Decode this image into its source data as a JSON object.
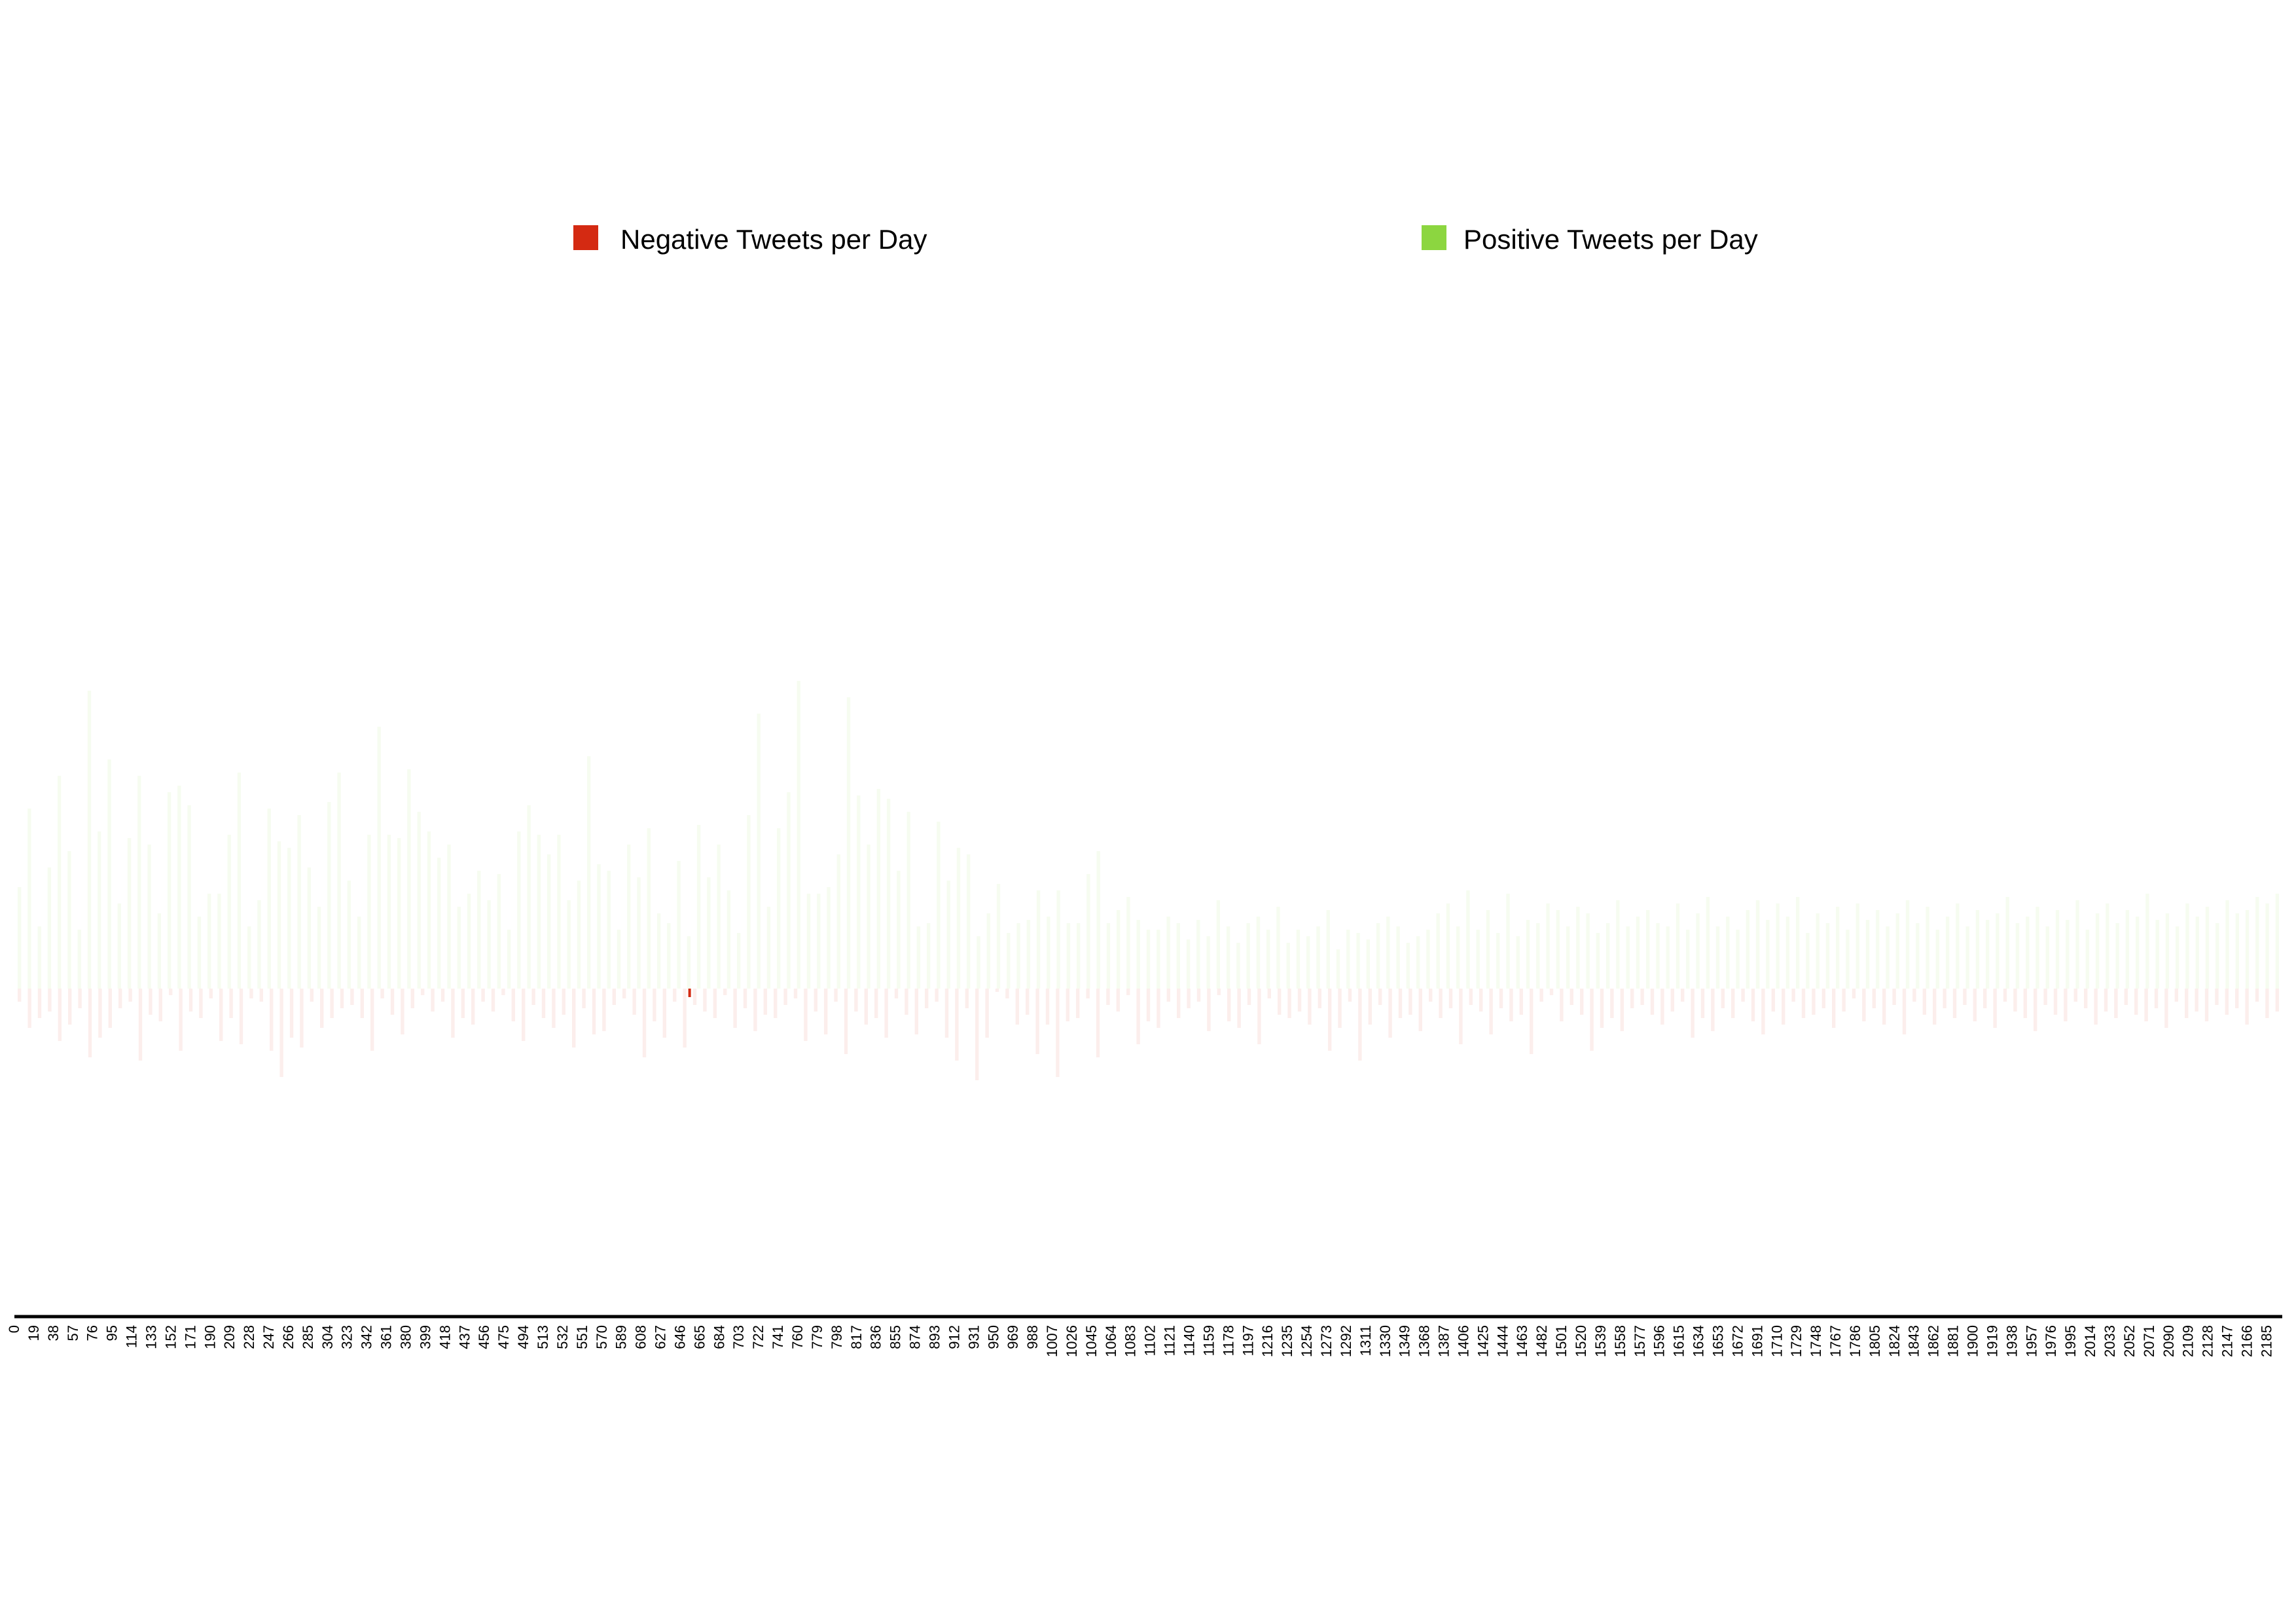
{
  "chart_data": {
    "type": "bar",
    "title": "",
    "xlabel": "",
    "ylabel": "",
    "xlim": [
      0,
      2200
    ],
    "x_tick_start": 0,
    "x_tick_step": 19,
    "x_tick_end": 2185,
    "grid": false,
    "legend_placement": "top",
    "bar_opacity": 0.08,
    "series": [
      {
        "name": "Negative Tweets per Day",
        "color": "#d42a12",
        "direction": "down",
        "values": [
          4,
          12,
          9,
          7,
          16,
          11,
          6,
          21,
          15,
          12,
          6,
          4,
          22,
          8,
          10,
          2,
          19,
          7,
          9,
          3,
          16,
          9,
          17,
          3,
          4,
          19,
          27,
          15,
          18,
          4,
          12,
          9,
          6,
          5,
          9,
          19,
          3,
          8,
          14,
          6,
          2,
          7,
          4,
          15,
          9,
          11,
          4,
          7,
          2,
          10,
          16,
          5,
          9,
          12,
          8,
          18,
          6,
          14,
          13,
          5,
          3,
          8,
          21,
          10,
          15,
          4,
          18,
          5,
          7,
          9,
          2,
          12,
          6,
          13,
          8,
          9,
          5,
          3,
          16,
          7,
          14,
          4,
          20,
          7,
          11,
          9,
          15,
          3,
          8,
          14,
          6,
          4,
          15,
          22,
          6,
          28,
          15,
          1,
          3,
          11,
          8,
          20,
          11,
          27,
          10,
          9,
          3,
          21,
          5,
          7,
          2,
          17,
          10,
          12,
          4,
          9,
          6,
          4,
          13,
          2,
          10,
          12,
          5,
          17,
          3,
          8,
          9,
          7,
          11,
          6,
          19,
          12,
          4,
          22,
          11,
          5,
          15,
          9,
          8,
          13,
          4,
          9,
          6,
          17,
          5,
          7,
          14,
          6,
          10,
          8,
          20,
          4,
          2,
          10,
          5,
          8,
          19,
          12,
          9,
          13,
          6,
          5,
          8,
          11,
          7,
          4,
          15,
          9,
          13,
          6,
          9,
          4,
          10,
          14,
          7,
          11,
          4,
          9,
          8,
          6,
          12,
          7,
          3,
          10,
          6,
          11,
          5,
          14,
          4,
          8,
          11,
          6,
          9,
          5,
          10,
          6,
          12,
          4,
          7,
          9,
          13,
          5,
          8,
          10,
          4,
          6,
          11,
          7,
          9,
          5,
          8,
          10,
          6,
          12,
          4,
          9,
          7,
          10,
          5,
          8,
          6,
          11,
          4,
          9,
          7
        ]
      },
      {
        "name": "Positive Tweets per Day",
        "color": "#8cd640",
        "direction": "up",
        "values": [
          31,
          55,
          19,
          37,
          65,
          42,
          18,
          91,
          48,
          70,
          26,
          46,
          65,
          44,
          23,
          60,
          62,
          56,
          22,
          29,
          29,
          47,
          66,
          19,
          27,
          55,
          45,
          43,
          53,
          37,
          25,
          57,
          66,
          33,
          22,
          47,
          80,
          47,
          46,
          67,
          54,
          48,
          40,
          44,
          25,
          29,
          36,
          27,
          35,
          18,
          48,
          56,
          47,
          41,
          47,
          27,
          33,
          71,
          38,
          36,
          18,
          44,
          34,
          49,
          23,
          20,
          39,
          16,
          50,
          34,
          44,
          30,
          17,
          53,
          84,
          25,
          49,
          60,
          94,
          29,
          29,
          31,
          41,
          89,
          59,
          44,
          61,
          58,
          36,
          54,
          19,
          20,
          51,
          33,
          43,
          41,
          16,
          23,
          32,
          17,
          20,
          21,
          30,
          22,
          30,
          20,
          20,
          35,
          42,
          20,
          24,
          28,
          21,
          18,
          18,
          22,
          20,
          15,
          21,
          16,
          27,
          19,
          14,
          20,
          22,
          18,
          25,
          14,
          18,
          16,
          19,
          24,
          12,
          18,
          17,
          15,
          20,
          22,
          19,
          14,
          16,
          18,
          23,
          26,
          19,
          30,
          18,
          24,
          17,
          29,
          16,
          21,
          20,
          26,
          24,
          19,
          25,
          23,
          17,
          20,
          27,
          19,
          22,
          24,
          20,
          19,
          26,
          18,
          23,
          28,
          19,
          22,
          18,
          24,
          27,
          21,
          26,
          22,
          28,
          17,
          23,
          20,
          25,
          18,
          26,
          21,
          24,
          19,
          23,
          27,
          20,
          25,
          18,
          22,
          26,
          19,
          24,
          21,
          23,
          28,
          20,
          22,
          25,
          19,
          24,
          21,
          27,
          18,
          23,
          26,
          20,
          24,
          22,
          29,
          21,
          23,
          19,
          26,
          22,
          25,
          20,
          27,
          23,
          24,
          28,
          26,
          29
        ]
      }
    ],
    "annotation": {
      "x": 655,
      "value": 2,
      "color": "#d42a12"
    }
  }
}
